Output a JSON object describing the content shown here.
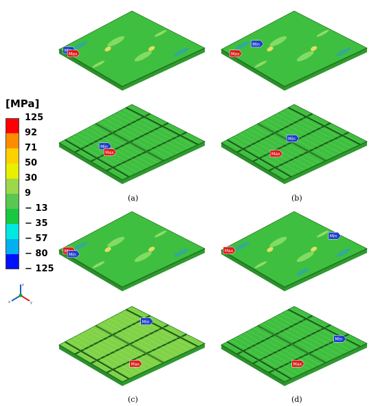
{
  "legend": {
    "unit": "[MPa]",
    "values": [
      "125",
      "92",
      "71",
      "50",
      "30",
      "9",
      "− 13",
      "− 35",
      "− 57",
      "− 80",
      "− 125"
    ],
    "colors": [
      "#ff0000",
      "#ff8c00",
      "#ffd000",
      "#e8f000",
      "#9cd84a",
      "#58c850",
      "#18c840",
      "#00e8e0",
      "#00b0f0",
      "#1078d8",
      "#0010ff"
    ]
  },
  "markers": {
    "min": "Min",
    "max": "Max"
  },
  "captions": {
    "a": "(a)",
    "b": "(b)",
    "c": "(c)",
    "d": "(d)"
  },
  "colors": {
    "plate_green": "#3fbf3f",
    "plate_light": "#5ccf4a",
    "plate_dark": "#2c8f2c",
    "rib": "#1b5e1b",
    "min_marker": "#1e3ecb",
    "max_marker": "#e01818"
  }
}
